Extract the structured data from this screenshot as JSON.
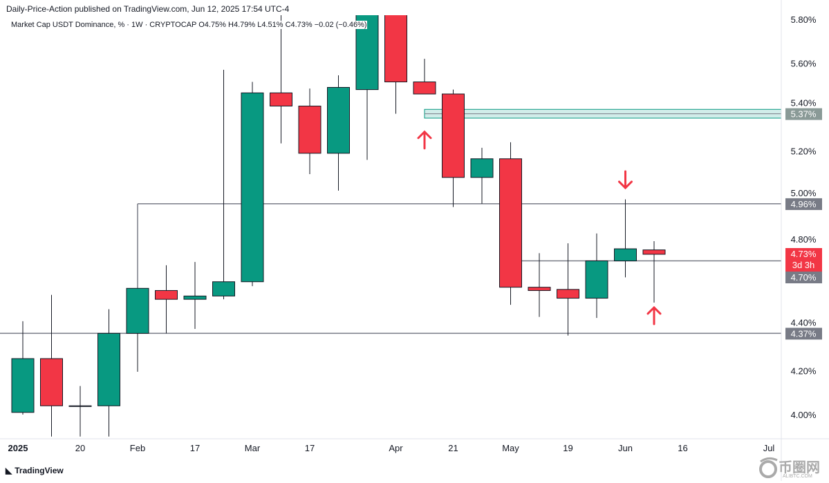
{
  "header": {
    "published": "Daily-Price-Action published on TradingView.com, Jun 12, 2025 17:54 UTC-4",
    "symbol_line": "Market Cap USDT Dominance, % · 1W · CRYPTOCAP  O4.75%  H4.79%  L4.51%  C4.73%  −0.02 (−0.46%)"
  },
  "footer": {
    "logo": "TradingView",
    "watermark_cn": "币圈网",
    "watermark_en": "ALIBTC.COM"
  },
  "colors": {
    "up": "#089981",
    "down": "#f23645",
    "level": "#787b86",
    "zone": "#b2dfdb"
  },
  "chart_data": {
    "type": "candlestick",
    "title": "Market Cap USDT Dominance, % · 1W · CRYPTOCAP",
    "ylim": [
      3.9,
      5.82
    ],
    "y_ticks": [
      "5.80%",
      "5.60%",
      "5.40%",
      "5.20%",
      "5.00%",
      "4.80%",
      "4.40%",
      "4.20%",
      "4.00%"
    ],
    "y_tick_values": [
      5.8,
      5.6,
      5.4,
      5.2,
      5.0,
      4.8,
      4.4,
      4.2,
      4.0
    ],
    "x_ticks": [
      "2025",
      "20",
      "Feb",
      "17",
      "Mar",
      "17",
      "Apr",
      "21",
      "May",
      "19",
      "Jun",
      "16",
      "Jul"
    ],
    "x_tick_index": [
      0,
      2,
      4,
      6,
      8,
      10,
      13,
      15,
      17,
      19,
      21,
      23,
      26
    ],
    "candles": [
      {
        "o": 4.01,
        "h": 4.425,
        "l": 4.0,
        "c": 4.255
      },
      {
        "o": 4.255,
        "h": 4.545,
        "l": 3.9,
        "c": 4.04
      },
      {
        "o": 4.04,
        "h": 4.13,
        "l": 3.9,
        "c": 4.04
      },
      {
        "o": 4.04,
        "h": 4.48,
        "l": 3.9,
        "c": 4.37
      },
      {
        "o": 4.37,
        "h": 4.575,
        "l": 4.195,
        "c": 4.575
      },
      {
        "o": 4.565,
        "h": 4.68,
        "l": 4.37,
        "c": 4.525
      },
      {
        "o": 4.525,
        "h": 4.695,
        "l": 4.39,
        "c": 4.54
      },
      {
        "o": 4.54,
        "h": 5.57,
        "l": 4.525,
        "c": 4.605
      },
      {
        "o": 4.605,
        "h": 5.515,
        "l": 4.585,
        "c": 5.465
      },
      {
        "o": 5.465,
        "h": 5.85,
        "l": 5.235,
        "c": 5.405
      },
      {
        "o": 5.405,
        "h": 5.485,
        "l": 5.095,
        "c": 5.19
      },
      {
        "o": 5.19,
        "h": 5.545,
        "l": 5.02,
        "c": 5.49
      },
      {
        "o": 5.48,
        "h": 5.95,
        "l": 5.16,
        "c": 5.9
      },
      {
        "o": 5.88,
        "h": 5.9,
        "l": 5.37,
        "c": 5.515
      },
      {
        "o": 5.515,
        "h": 5.62,
        "l": 5.46,
        "c": 5.46
      },
      {
        "o": 5.46,
        "h": 5.48,
        "l": 4.945,
        "c": 5.08
      },
      {
        "o": 5.08,
        "h": 5.215,
        "l": 4.96,
        "c": 5.165
      },
      {
        "o": 5.165,
        "h": 5.24,
        "l": 4.5,
        "c": 4.58
      },
      {
        "o": 4.58,
        "h": 4.735,
        "l": 4.445,
        "c": 4.565
      },
      {
        "o": 4.57,
        "h": 4.78,
        "l": 4.36,
        "c": 4.53
      },
      {
        "o": 4.53,
        "h": 4.825,
        "l": 4.44,
        "c": 4.7
      },
      {
        "o": 4.7,
        "h": 4.98,
        "l": 4.625,
        "c": 4.755
      },
      {
        "o": 4.75,
        "h": 4.79,
        "l": 4.51,
        "c": 4.73
      }
    ],
    "levels": [
      {
        "value": 4.96,
        "label": "4.96%",
        "from_index": 4
      },
      {
        "value": 4.7,
        "label": "4.70%",
        "from_index": 17
      },
      {
        "value": 4.37,
        "label": "4.37%",
        "from_index": -1
      }
    ],
    "zone": {
      "low": 5.35,
      "high": 5.39,
      "label": "5.37%",
      "from_index": 14
    },
    "last_price": {
      "label": "4.73%",
      "countdown": "3d 3h",
      "value": 4.73
    },
    "arrows": [
      {
        "index": 14,
        "direction": "up",
        "value": 5.25
      },
      {
        "index": 21,
        "direction": "down",
        "value": 5.07
      },
      {
        "index": 22,
        "direction": "up",
        "value": 4.45
      }
    ]
  }
}
